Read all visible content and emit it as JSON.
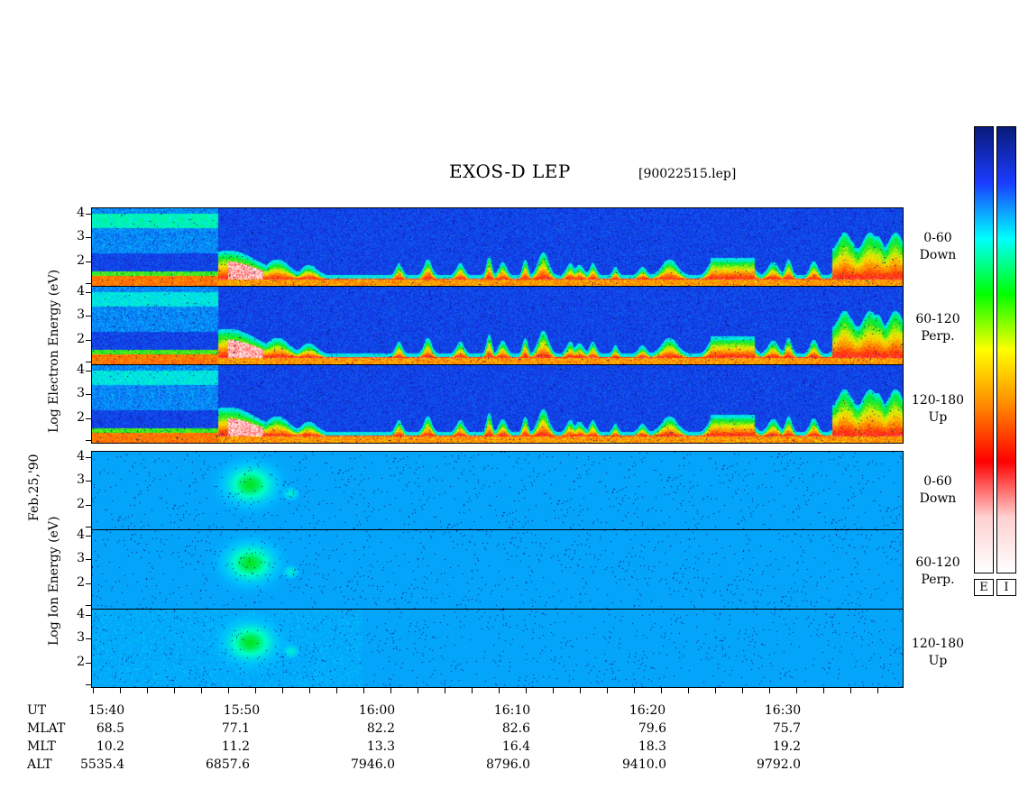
{
  "header": {
    "title": "EXOS-D LEP",
    "filename": "[90022515.lep]"
  },
  "left_labels": {
    "date": "Feb.25,'90",
    "electron_axis": "Log   Electron   Energy (eV)",
    "ion_axis": "Log   Ion   Energy (eV)"
  },
  "panels": [
    {
      "species": "electron",
      "pitch": "0-60",
      "direction": "Down"
    },
    {
      "species": "electron",
      "pitch": "60-120",
      "direction": "Perp."
    },
    {
      "species": "electron",
      "pitch": "120-180",
      "direction": "Up"
    },
    {
      "species": "ion",
      "pitch": "0-60",
      "direction": "Down"
    },
    {
      "species": "ion",
      "pitch": "60-120",
      "direction": "Perp."
    },
    {
      "species": "ion",
      "pitch": "120-180",
      "direction": "Up"
    }
  ],
  "y_ticks": [
    "4",
    "3",
    "2"
  ],
  "orbit_table": {
    "row_labels": [
      "UT",
      "MLAT",
      "MLT",
      "ALT"
    ],
    "columns": [
      {
        "UT": "15:40",
        "MLAT": "68.5",
        "MLT": "10.2",
        "ALT": "5535.4"
      },
      {
        "UT": "15:50",
        "MLAT": "77.1",
        "MLT": "11.2",
        "ALT": "6857.6"
      },
      {
        "UT": "16:00",
        "MLAT": "82.2",
        "MLT": "13.3",
        "ALT": "7946.0"
      },
      {
        "UT": "16:10",
        "MLAT": "82.6",
        "MLT": "16.4",
        "ALT": "8796.0"
      },
      {
        "UT": "16:20",
        "MLAT": "79.6",
        "MLT": "18.3",
        "ALT": "9410.0"
      },
      {
        "UT": "16:30",
        "MLAT": "75.7",
        "MLT": "19.2",
        "ALT": "9792.0"
      }
    ]
  },
  "colorbar": {
    "labels": [
      "E",
      "I"
    ],
    "stops": [
      "#0a1a7a",
      "#1a3cff",
      "#00ffff",
      "#00ff00",
      "#ffff00",
      "#ff8800",
      "#ff0000",
      "#ffd0d0",
      "#ffffff"
    ]
  },
  "chart_data": {
    "type": "heatmap",
    "title": "EXOS-D LEP",
    "xlabel": "UT",
    "ylabel": "Log Energy (eV)",
    "x_ticks": [
      "15:40",
      "15:50",
      "16:00",
      "16:10",
      "16:20",
      "16:30"
    ],
    "ylim": [
      1,
      4.2
    ],
    "y_ticks": [
      2,
      3,
      4
    ],
    "colormap": "blue-cyan-green-yellow-red-white",
    "features": {
      "electron": "dense low-energy (log E ~1.2-2) flux with intermittent bursts up to log E ~3 after 15:48; broad high-energy band (log E 3-4) before 15:48",
      "ion": "single burst centered near 15:50, log E 2-3.2, strongest in all three pitch-angle ranges"
    }
  }
}
